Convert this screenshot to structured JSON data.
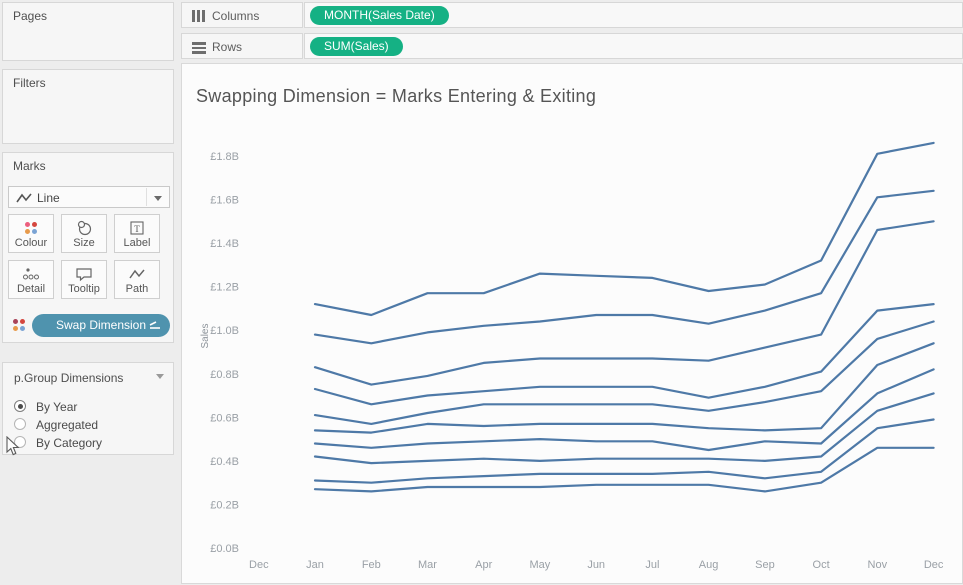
{
  "shelves": {
    "columns": {
      "label": "Columns",
      "pill": "MONTH(Sales Date)"
    },
    "rows": {
      "label": "Rows",
      "pill": "SUM(Sales)"
    },
    "pill_color": "#15b184"
  },
  "sidebar": {
    "pages": {
      "label": "Pages"
    },
    "filters": {
      "label": "Filters"
    },
    "marks": {
      "label": "Marks",
      "mark_type": "Line",
      "buttons": [
        {
          "label": "Colour"
        },
        {
          "label": "Size"
        },
        {
          "label": "Label"
        },
        {
          "label": "Detail"
        },
        {
          "label": "Tooltip"
        },
        {
          "label": "Path"
        }
      ],
      "swap_button_label": "Swap Dimension",
      "swap_button_color": "#4f93ae"
    },
    "parameter": {
      "title": "p.Group Dimensions",
      "options": [
        {
          "label": "By Year",
          "selected": true
        },
        {
          "label": "Aggregated",
          "selected": false
        },
        {
          "label": "By Category",
          "selected": false
        }
      ]
    }
  },
  "icon_colors": {
    "colour_button_dots": [
      "#ec5f7e",
      "#d5473f",
      "#e79a4b",
      "#7aa3d4"
    ],
    "legend_dots": [
      "#a94459",
      "#d5473f",
      "#e79a4b",
      "#7aa3d4"
    ]
  },
  "chart_data": {
    "type": "line",
    "title": "Swapping Dimension = Marks Entering & Exiting",
    "ylabel": "Sales",
    "xlabel": "",
    "x_axis_ticks": [
      "Dec",
      "Jan",
      "Feb",
      "Mar",
      "Apr",
      "May",
      "Jun",
      "Jul",
      "Aug",
      "Sep",
      "Oct",
      "Nov",
      "Dec"
    ],
    "x_categories": [
      "Jan",
      "Feb",
      "Mar",
      "Apr",
      "May",
      "Jun",
      "Jul",
      "Aug",
      "Sep",
      "Oct",
      "Nov",
      "Dec"
    ],
    "y_ticks": [
      "£0.0B",
      "£0.2B",
      "£0.4B",
      "£0.6B",
      "£0.8B",
      "£1.0B",
      "£1.2B",
      "£1.4B",
      "£1.6B",
      "£1.8B"
    ],
    "ylim": [
      0,
      1.9
    ],
    "unit": "billions GBP",
    "grid": false,
    "legend": "none",
    "line_color": "#4e79a7",
    "series": [
      {
        "name": "line-1",
        "values": [
          1.12,
          1.07,
          1.17,
          1.17,
          1.26,
          1.25,
          1.24,
          1.18,
          1.21,
          1.32,
          1.81,
          1.86
        ]
      },
      {
        "name": "line-2",
        "values": [
          0.98,
          0.94,
          0.99,
          1.02,
          1.04,
          1.07,
          1.07,
          1.03,
          1.09,
          1.17,
          1.61,
          1.64
        ]
      },
      {
        "name": "line-3",
        "values": [
          0.83,
          0.75,
          0.79,
          0.85,
          0.87,
          0.87,
          0.87,
          0.86,
          0.92,
          0.98,
          1.46,
          1.5
        ]
      },
      {
        "name": "line-4",
        "values": [
          0.73,
          0.66,
          0.7,
          0.72,
          0.74,
          0.74,
          0.74,
          0.69,
          0.74,
          0.81,
          1.09,
          1.12
        ]
      },
      {
        "name": "line-5",
        "values": [
          0.61,
          0.57,
          0.62,
          0.66,
          0.66,
          0.66,
          0.66,
          0.63,
          0.67,
          0.72,
          0.96,
          1.04
        ]
      },
      {
        "name": "line-6",
        "values": [
          0.54,
          0.53,
          0.57,
          0.56,
          0.57,
          0.57,
          0.57,
          0.55,
          0.54,
          0.55,
          0.84,
          0.94
        ]
      },
      {
        "name": "line-7",
        "values": [
          0.48,
          0.46,
          0.48,
          0.49,
          0.5,
          0.49,
          0.49,
          0.45,
          0.49,
          0.48,
          0.71,
          0.82
        ]
      },
      {
        "name": "line-8",
        "values": [
          0.42,
          0.39,
          0.4,
          0.41,
          0.4,
          0.41,
          0.41,
          0.41,
          0.4,
          0.42,
          0.63,
          0.71
        ]
      },
      {
        "name": "line-9",
        "values": [
          0.31,
          0.3,
          0.32,
          0.33,
          0.34,
          0.34,
          0.34,
          0.35,
          0.32,
          0.35,
          0.55,
          0.59
        ]
      },
      {
        "name": "line-10",
        "values": [
          0.27,
          0.26,
          0.28,
          0.28,
          0.28,
          0.29,
          0.29,
          0.29,
          0.26,
          0.3,
          0.46,
          0.46
        ]
      }
    ]
  }
}
